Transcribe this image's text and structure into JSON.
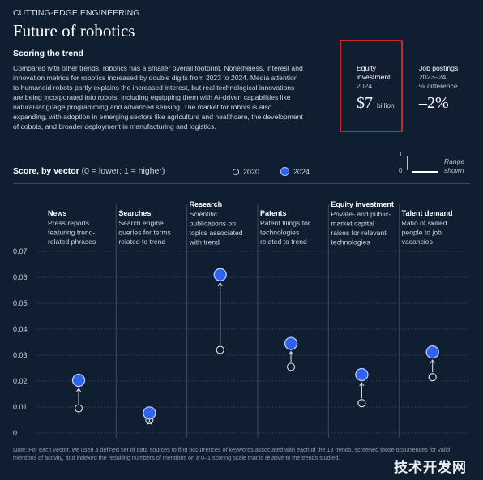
{
  "header": {
    "eyebrow": "CUTTING-EDGE ENGINEERING",
    "title": "Future of robotics",
    "subhead": "Scoring the trend",
    "body": "Compared with other trends, robotics has a smaller overall footprint. Nonetheless, interest and innovation metrics for robotics increased by double digits from 2023 to 2024. Media attention to humanoid robots partly explains the increased interest, but real technological innovations are being incorporated into robots, including equipping them with AI-driven capabilities like natural-language programming and advanced sensing. The market for robots is also expanding, with adoption in emerging sectors like agriculture and healthcare, the development of cobots, and broader deployment in manufacturing and logistics."
  },
  "kpis": {
    "equity": {
      "label_line1": "Equity",
      "label_line2": "investment,",
      "label_line3": "2024",
      "value": "$7",
      "unit": "billion"
    },
    "jobs": {
      "label_line1": "Job postings,",
      "label_line2": "2023–24,",
      "label_line3": "% difference",
      "value": "–2%"
    }
  },
  "range_key": {
    "top": "1",
    "bottom": "0",
    "label_line1": "Range",
    "label_line2": "shown"
  },
  "score": {
    "title_bold": "Score, by vector",
    "title_rest": " (0 = lower; 1 = higher)",
    "legend_2020": "2020",
    "legend_2024": "2024"
  },
  "colors": {
    "background": "#0f1f31",
    "point_2024": "#2f62ef",
    "highlight_box": "#d0232a"
  },
  "chart_data": {
    "type": "scatter",
    "ylim": [
      0,
      0.07
    ],
    "yticks": [
      "0",
      "0.01",
      "0.02",
      "0.03",
      "0.04",
      "0.05",
      "0.06",
      "0.07"
    ],
    "categories": [
      {
        "name": "News",
        "desc": [
          "Press reports",
          "featuring trend-",
          "related phrases"
        ]
      },
      {
        "name": "Searches",
        "desc": [
          "Search engine",
          "queries for terms",
          "related to trend"
        ]
      },
      {
        "name": "Research",
        "desc": [
          "Scientific",
          "publications on",
          "topics associated",
          "with trend"
        ]
      },
      {
        "name": "Patents",
        "desc": [
          "Patent filings for",
          "technologies",
          "related to trend"
        ]
      },
      {
        "name": "Equity investment",
        "desc": [
          "Private- and public-",
          "market capital",
          "raises for relevant",
          "technologies"
        ]
      },
      {
        "name": "Talent demand",
        "desc": [
          "Ratio of skilled",
          "people to job",
          "vacancies"
        ]
      }
    ],
    "series": [
      {
        "name": "2020",
        "values": [
          0.0095,
          0.005,
          0.032,
          0.0255,
          0.0115,
          0.0215
        ]
      },
      {
        "name": "2024",
        "values": [
          0.0203,
          0.0077,
          0.061,
          0.0345,
          0.0225,
          0.0312
        ]
      }
    ]
  },
  "footnote": "Note: For each vector, we used a defined set of data sources to find occurrences of keywords associated with each of the 13 trends, screened those occurrences for valid mentions of activity, and indexed the resulting numbers of mentions on a 0–1 scoring scale that is relative to the trends studied.",
  "watermark": "技术开发网"
}
